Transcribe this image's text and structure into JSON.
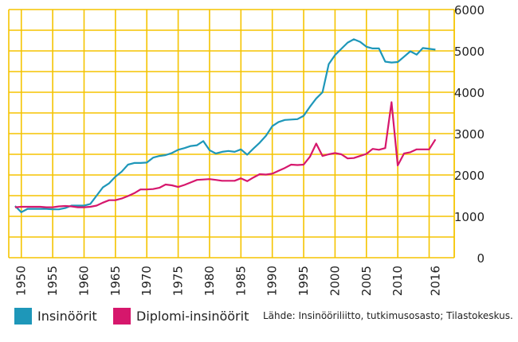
{
  "chart_data": {
    "type": "line",
    "xlim": [
      1948,
      2019
    ],
    "ylim": [
      0,
      6000
    ],
    "grid": true,
    "yticks": [
      "0",
      "1000",
      "2000",
      "3000",
      "4000",
      "5000",
      "6000"
    ],
    "xticks": [
      "1950",
      "1955",
      "1960",
      "1965",
      "1970",
      "1975",
      "1980",
      "1985",
      "1990",
      "1995",
      "2000",
      "2005",
      "2010",
      "2016"
    ],
    "legend_position": "bottom-left",
    "series": [
      {
        "name": "Insinöörit",
        "color": "#1e97b9",
        "x": [
          1949,
          1950,
          1951,
          1952,
          1953,
          1954,
          1955,
          1956,
          1957,
          1958,
          1959,
          1960,
          1961,
          1962,
          1963,
          1964,
          1965,
          1966,
          1967,
          1968,
          1969,
          1970,
          1971,
          1972,
          1973,
          1974,
          1975,
          1976,
          1977,
          1978,
          1979,
          1980,
          1981,
          1982,
          1983,
          1984,
          1985,
          1986,
          1987,
          1988,
          1989,
          1990,
          1991,
          1992,
          1993,
          1994,
          1995,
          1996,
          1997,
          1998,
          1999,
          2000,
          2001,
          2002,
          2003,
          2004,
          2005,
          2006,
          2007,
          2008,
          2009,
          2010,
          2011,
          2012,
          2013,
          2014,
          2015,
          2016
        ],
        "y": [
          1250,
          1100,
          1180,
          1180,
          1180,
          1180,
          1170,
          1170,
          1200,
          1260,
          1260,
          1260,
          1300,
          1500,
          1700,
          1800,
          1960,
          2080,
          2250,
          2290,
          2290,
          2300,
          2420,
          2460,
          2480,
          2530,
          2610,
          2650,
          2700,
          2720,
          2820,
          2600,
          2520,
          2560,
          2580,
          2560,
          2620,
          2490,
          2640,
          2780,
          2950,
          3180,
          3280,
          3330,
          3340,
          3350,
          3430,
          3650,
          3850,
          4000,
          4680,
          4900,
          5050,
          5200,
          5280,
          5220,
          5100,
          5060,
          5060,
          4740,
          4720,
          4730,
          4860,
          4990,
          4910,
          5070,
          5050,
          5030
        ]
      },
      {
        "name": "Diplomi-insinöörit",
        "color": "#d6176c",
        "x": [
          1949,
          1950,
          1951,
          1952,
          1953,
          1954,
          1955,
          1956,
          1957,
          1958,
          1959,
          1960,
          1961,
          1962,
          1963,
          1964,
          1965,
          1966,
          1967,
          1968,
          1969,
          1970,
          1971,
          1972,
          1973,
          1974,
          1975,
          1976,
          1977,
          1978,
          1979,
          1980,
          1981,
          1982,
          1983,
          1984,
          1985,
          1986,
          1987,
          1988,
          1989,
          1990,
          1991,
          1992,
          1993,
          1994,
          1995,
          1996,
          1997,
          1998,
          1999,
          2000,
          2001,
          2002,
          2003,
          2004,
          2005,
          2006,
          2007,
          2008,
          2009,
          2010,
          2011,
          2012,
          2013,
          2014,
          2015,
          2016
        ],
        "y": [
          1220,
          1230,
          1230,
          1230,
          1230,
          1220,
          1220,
          1240,
          1250,
          1240,
          1220,
          1220,
          1230,
          1260,
          1330,
          1390,
          1390,
          1430,
          1490,
          1560,
          1650,
          1650,
          1660,
          1690,
          1770,
          1750,
          1710,
          1760,
          1820,
          1880,
          1890,
          1900,
          1880,
          1860,
          1860,
          1860,
          1920,
          1850,
          1940,
          2020,
          2010,
          2030,
          2100,
          2170,
          2250,
          2240,
          2250,
          2440,
          2760,
          2460,
          2500,
          2530,
          2500,
          2400,
          2410,
          2460,
          2510,
          2630,
          2610,
          2650,
          3760,
          2230,
          2520,
          2550,
          2620,
          2620,
          2620,
          2860
        ]
      }
    ]
  },
  "source_text": "Lähde: Insinööriliitto, tutkimusosasto; Tilastokeskus."
}
